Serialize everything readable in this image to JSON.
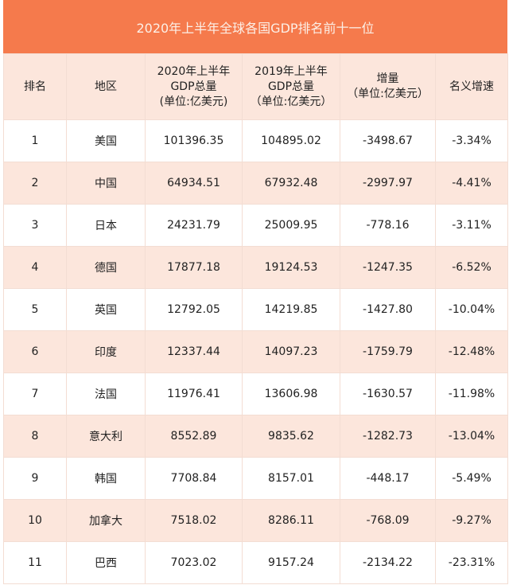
{
  "title": "2020年上半年全球各国GDP排名前十一位",
  "colors": {
    "title_bg": "#F57A4C",
    "header_bg": "#FCE6DC",
    "alt_row_bg": "#FCE6DC"
  },
  "headers": [
    {
      "lines": [
        "排名"
      ]
    },
    {
      "lines": [
        "地区"
      ]
    },
    {
      "lines": [
        "2020年上半年",
        "GDP总量",
        "(单位:亿美元)"
      ]
    },
    {
      "lines": [
        "2019年上半年",
        "GDP总量",
        "（单位:亿美元）"
      ]
    },
    {
      "lines": [
        "增量",
        "（单位:亿美元）"
      ]
    },
    {
      "lines": [
        "名义增速"
      ]
    }
  ],
  "rows": [
    [
      "1",
      "美国",
      "101396.35",
      "104895.02",
      "-3498.67",
      "-3.34%"
    ],
    [
      "2",
      "中国",
      "64934.51",
      "67932.48",
      "-2997.97",
      "-4.41%"
    ],
    [
      "3",
      "日本",
      "24231.79",
      "25009.95",
      "-778.16",
      "-3.11%"
    ],
    [
      "4",
      "德国",
      "17877.18",
      "19124.53",
      "-1247.35",
      "-6.52%"
    ],
    [
      "5",
      "英国",
      "12792.05",
      "14219.85",
      "-1427.80",
      "-10.04%"
    ],
    [
      "6",
      "印度",
      "12337.44",
      "14097.23",
      "-1759.79",
      "-12.48%"
    ],
    [
      "7",
      "法国",
      "11976.41",
      "13606.98",
      "-1630.57",
      "-11.98%"
    ],
    [
      "8",
      "意大利",
      "8552.89",
      "9835.62",
      "-1282.73",
      "-13.04%"
    ],
    [
      "9",
      "韩国",
      "7708.84",
      "8157.01",
      "-448.17",
      "-5.49%"
    ],
    [
      "10",
      "加拿大",
      "7518.02",
      "8286.11",
      "-768.09",
      "-9.27%"
    ],
    [
      "11",
      "巴西",
      "7023.02",
      "9157.24",
      "-2134.22",
      "-23.31%"
    ]
  ]
}
